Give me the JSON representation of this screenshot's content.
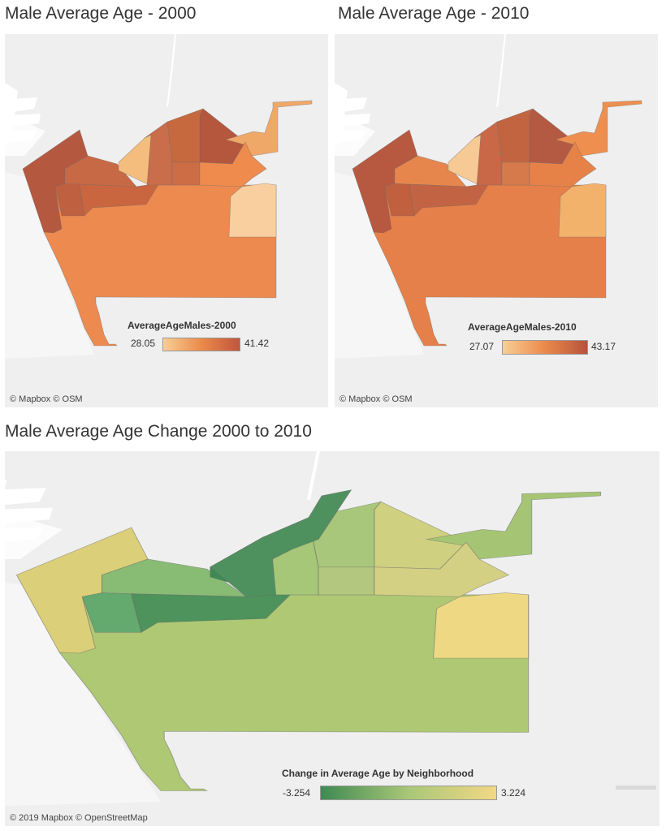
{
  "maps": [
    {
      "title": "Male Average Age - 2000",
      "attribution": "© Mapbox © OSM",
      "legend": {
        "title": "AverageAgeMales-2000",
        "min": "28.05",
        "max": "41.42",
        "gradient": [
          "#f8cf95",
          "#eb8a4a",
          "#c0553d"
        ]
      },
      "fills": {
        "n_west": "#b55840",
        "n_west2": "#bf6040",
        "n_midwest": "#c86945",
        "n_pale": "#f4bd7d",
        "n_midc": "#c96d4b",
        "n_ne": "#b4573d",
        "n_center": "#c6693e",
        "n_far_ne": "#f0a868",
        "n_east": "#ee8b4d",
        "n_se": "#f9cfa0",
        "n_main": "#ec8a50",
        "n_small1": "#c9663f",
        "n_small2": "#cd6d45"
      }
    },
    {
      "title": "Male Average Age - 2010",
      "attribution": "© Mapbox © OSM",
      "legend": {
        "title": "AverageAgeMales-2010",
        "min": "27.07",
        "max": "43.17",
        "gradient": [
          "#f8cf95",
          "#eb8a4a",
          "#b5533c"
        ]
      },
      "fills": {
        "n_west": "#b75840",
        "n_west2": "#c0603e",
        "n_midwest": "#e7864c",
        "n_pale": "#f7c994",
        "n_midc": "#c86847",
        "n_ne": "#b45a43",
        "n_center": "#c36440",
        "n_far_ne": "#ee8f4f",
        "n_east": "#e68247",
        "n_se": "#f2b26c",
        "n_main": "#e5804a",
        "n_small1": "#c26444",
        "n_small2": "#d67a4c"
      }
    },
    {
      "title": "Male Average Age Change 2000 to 2010",
      "attribution": "© 2019 Mapbox © OpenStreetMap",
      "legend": {
        "title": "Change in Average Age by Neighborhood",
        "min": "-3.254",
        "max": "3.224",
        "gradient": [
          "#3f8a52",
          "#a9c778",
          "#f2d884"
        ]
      },
      "fills": {
        "n_west": "#dccf79",
        "n_west2": "#64a96e",
        "n_midwest": "#88bb74",
        "n_pale": "#3e8a55",
        "n_midc": "#a5c777",
        "n_ne": "#cfd080",
        "n_center": "#a9c77a",
        "n_far_ne": "#a5c575",
        "n_east": "#d3d083",
        "n_se": "#efd883",
        "n_main": "#aec874",
        "n_small1": "#4e925c",
        "n_small2": "#b3c87e",
        "n_north": "#4e915e"
      }
    }
  ]
}
